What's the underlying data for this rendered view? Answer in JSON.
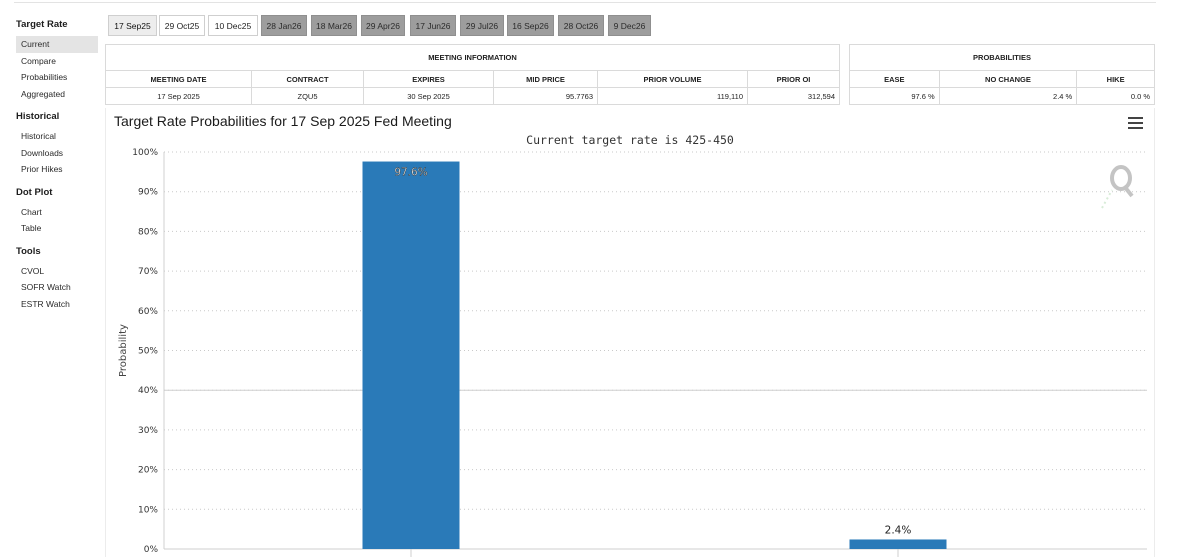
{
  "sidebar": {
    "sections": [
      {
        "heading": "Target Rate",
        "items": [
          "Current",
          "Compare",
          "Probabilities",
          "Aggregated"
        ]
      },
      {
        "heading": "Historical",
        "items": [
          "Historical",
          "Downloads",
          "Prior Hikes"
        ]
      },
      {
        "heading": "Dot Plot",
        "items": [
          "Chart",
          "Table"
        ]
      },
      {
        "heading": "Tools",
        "items": [
          "CVOL",
          "SOFR Watch",
          "ESTR Watch"
        ]
      }
    ]
  },
  "tabs": [
    "17 Sep25",
    "29 Oct25",
    "10 Dec25",
    "28 Jan26",
    "18 Mar26",
    "29 Apr26",
    "17 Jun26",
    "29 Jul26",
    "16 Sep26",
    "28 Oct26",
    "9 Dec26"
  ],
  "meeting_info": {
    "title": "MEETING INFORMATION",
    "headers": [
      "MEETING DATE",
      "CONTRACT",
      "EXPIRES",
      "MID PRICE",
      "PRIOR VOLUME",
      "PRIOR OI"
    ],
    "row": [
      "17 Sep 2025",
      "ZQU5",
      "30 Sep 2025",
      "95.7763",
      "119,110",
      "312,594"
    ]
  },
  "probabilities": {
    "title": "PROBABILITIES",
    "headers": [
      "EASE",
      "NO CHANGE",
      "HIKE"
    ],
    "row": [
      "97.6 %",
      "2.4 %",
      "0.0 %"
    ]
  },
  "chart": {
    "title": "Target Rate Probabilities for 17 Sep 2025 Fed Meeting",
    "subtitle": "Current target rate is 425-450"
  },
  "chart_data": {
    "type": "bar",
    "title": "Target Rate Probabilities for 17 Sep 2025 Fed Meeting",
    "subtitle": "Current target rate is 425-450",
    "ylabel": "Probability",
    "xlabel": "",
    "ylim": [
      0,
      100
    ],
    "yticks": [
      "0%",
      "10%",
      "20%",
      "30%",
      "40%",
      "50%",
      "60%",
      "70%",
      "80%",
      "90%",
      "100%"
    ],
    "values": [
      97.6,
      2.4
    ],
    "data_labels": [
      "97.6%",
      "2.4%"
    ],
    "bar_color": "#2a7ab8",
    "grid": true
  }
}
